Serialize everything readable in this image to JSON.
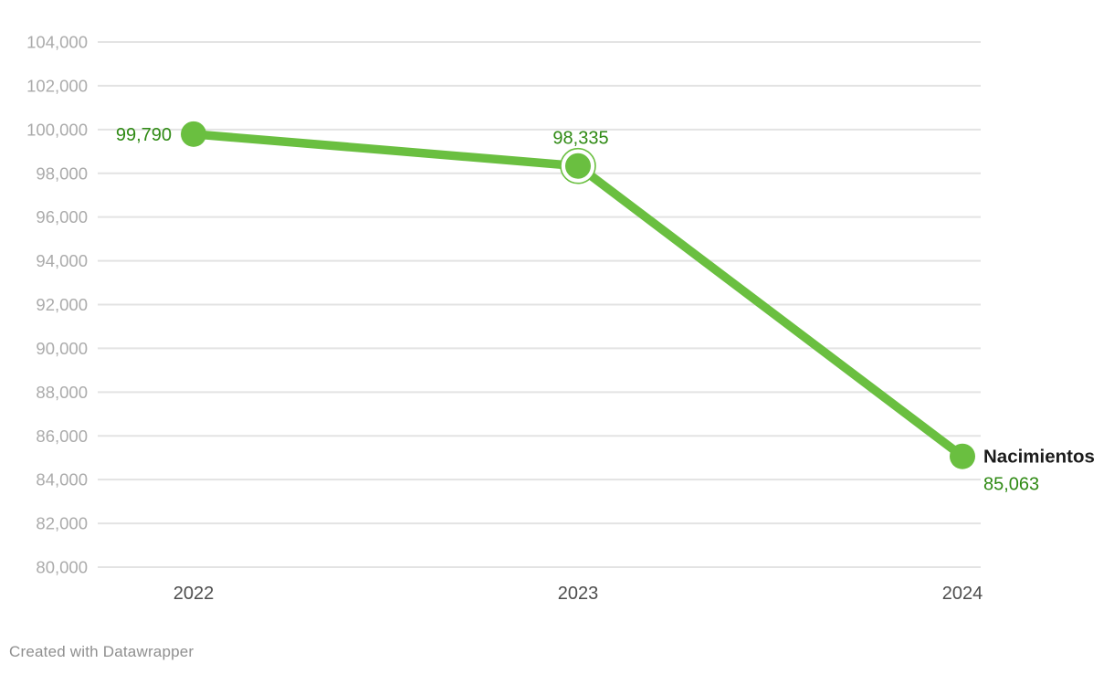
{
  "colors": {
    "background": "#ffffff",
    "line": "#6abf40",
    "value_label": "#2f8a14",
    "grid": "#e3e3e3",
    "y_tick_text": "#ababab",
    "x_tick_text": "#4d4d4d",
    "series_label": "#1b1b1b",
    "highlight_ring_fill": "#ffffff",
    "credit_text": "#8f8f8f"
  },
  "footer": {
    "credit": "Created with Datawrapper"
  },
  "chart_data": {
    "type": "line",
    "title": "",
    "xlabel": "",
    "ylabel": "",
    "categories": [
      "2022",
      "2023",
      "2024"
    ],
    "series": [
      {
        "name": "Nacimientos",
        "values": [
          99790,
          98335,
          85063
        ],
        "point_labels": [
          "99,790",
          "98,335",
          "85,063"
        ],
        "color": "#6abf40"
      }
    ],
    "ylim": [
      80000,
      104000
    ],
    "ytick_step": 2000,
    "ytick_labels": [
      "80,000",
      "82,000",
      "84,000",
      "86,000",
      "88,000",
      "90,000",
      "92,000",
      "94,000",
      "96,000",
      "98,000",
      "100,000",
      "102,000",
      "104,000"
    ],
    "grid": true,
    "legend_position": "end-of-line",
    "highlighted_point": {
      "category": "2023",
      "index": 1
    }
  }
}
